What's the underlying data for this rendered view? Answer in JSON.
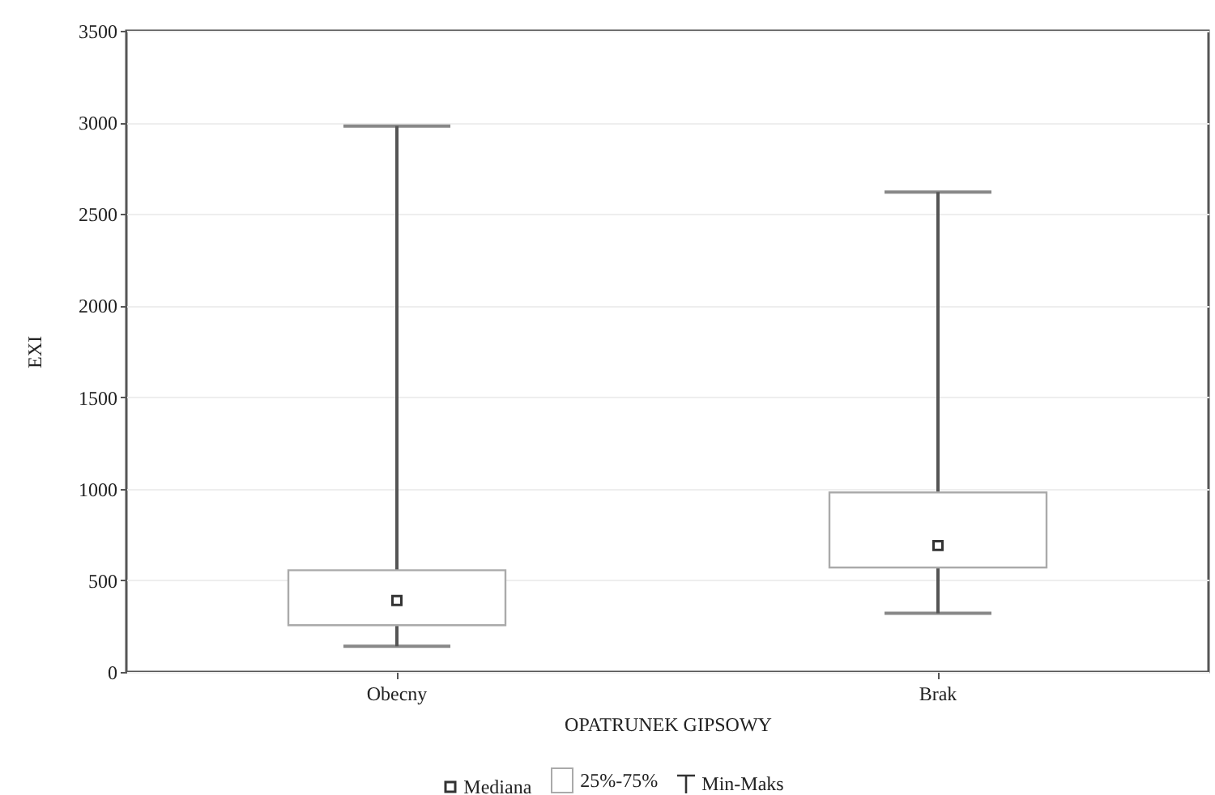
{
  "chart_data": {
    "type": "box",
    "xlabel": "OPATRUNEK GIPSOWY",
    "ylabel": "EXI",
    "categories": [
      "Obecny",
      "Brak"
    ],
    "boxes": [
      {
        "low": 140,
        "q1": 255,
        "median": 390,
        "q3": 555,
        "high": 2980
      },
      {
        "low": 320,
        "q1": 570,
        "median": 690,
        "q3": 980,
        "high": 2620
      }
    ],
    "ylim": [
      0,
      3500
    ],
    "yticks": [
      0,
      500,
      1000,
      1500,
      2000,
      2500,
      3000,
      3500
    ],
    "grid": "y",
    "annotations": [
      "Mediana",
      "25%-75%",
      "Min-Maks"
    ]
  }
}
